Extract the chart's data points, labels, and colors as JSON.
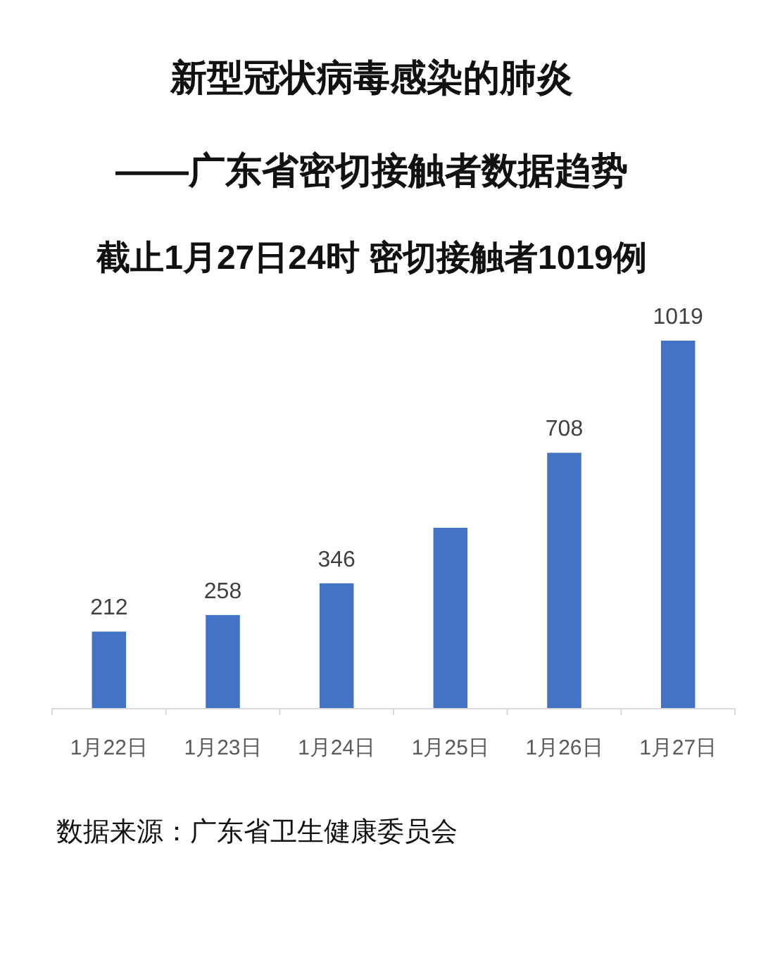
{
  "chart_data": {
    "type": "bar",
    "title": "新型冠状病毒感染的肺炎\n——广东省密切接触者数据趋势",
    "subtitle": "截止1月27日24时 密切接触者1019例",
    "categories": [
      "1月22日",
      "1月23日",
      "1月24日",
      "1月25日",
      "1月26日",
      "1月27日"
    ],
    "values": [
      212,
      258,
      346,
      500,
      708,
      1019
    ],
    "value_labels": [
      "212",
      "258",
      "346",
      null,
      "708",
      "1019"
    ],
    "color": "#4472c4",
    "annotations": [
      "数据来源：广东省卫生健康委员会"
    ]
  }
}
